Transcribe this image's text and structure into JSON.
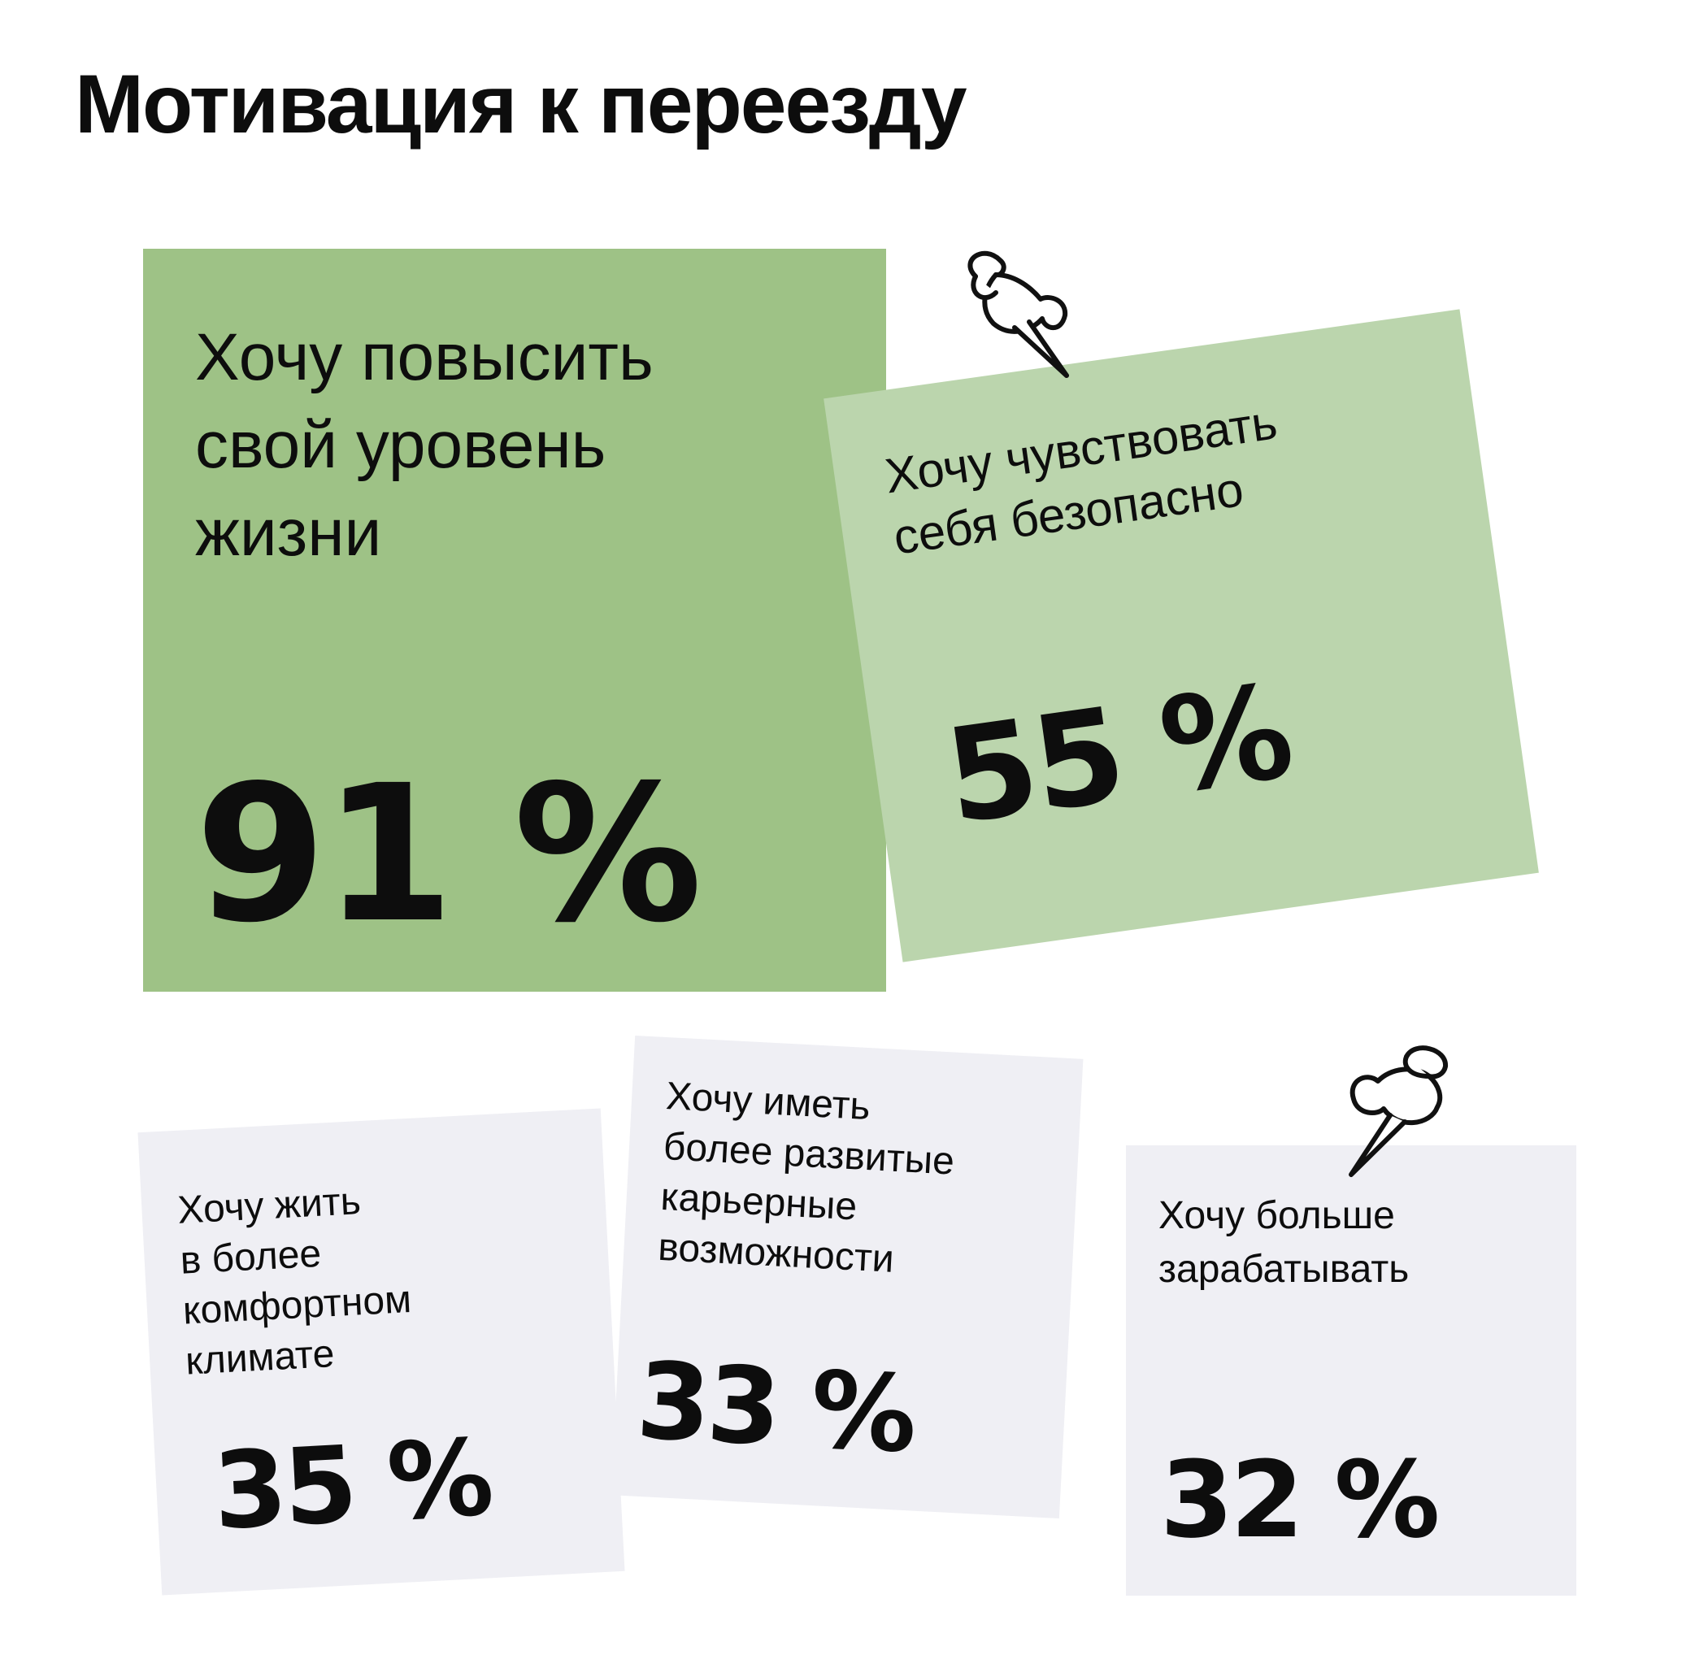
{
  "title": "Мотивация к переезду",
  "cards": [
    {
      "label": "Хочу повысить\nсвой уровень\nжизни",
      "value": "91 %",
      "color": "#9ec286"
    },
    {
      "label": "Хочу чувствовать\nсебя безопасно",
      "value": "55 %",
      "color": "#bbd5ad"
    },
    {
      "label": "Хочу жить\nв более\nкомфортном\nклимате",
      "value": "35 %",
      "color": "#efeff4"
    },
    {
      "label": "Хочу иметь\nболее развитые\nкарьерные\nвозможности",
      "value": "33 %",
      "color": "#efeff4"
    },
    {
      "label": "Хочу больше\nзарабатывать",
      "value": "32 %",
      "color": "#efeff4"
    }
  ],
  "icons": [
    "pushpin-icon",
    "pushpin-icon"
  ]
}
